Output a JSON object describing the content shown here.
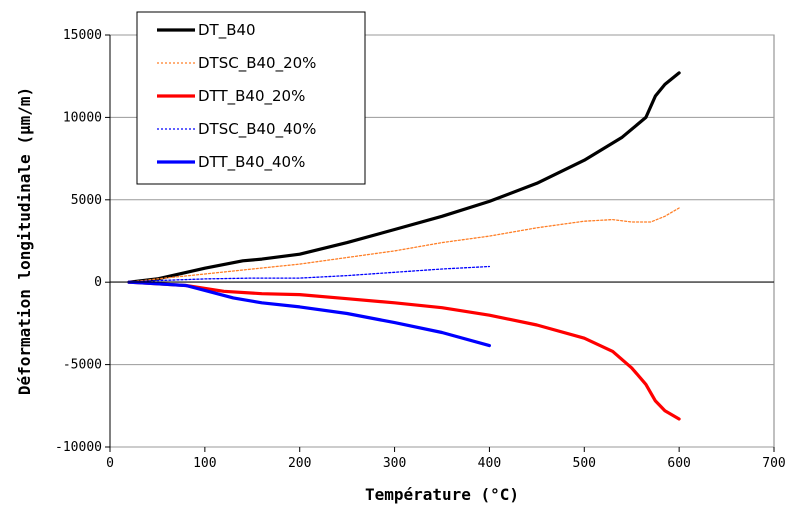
{
  "chart_data": {
    "type": "line",
    "xlabel": "Température (°C)",
    "ylabel": "Déformation longitudinale (µm/m)",
    "xlim": [
      0,
      700
    ],
    "ylim": [
      -10000,
      15000
    ],
    "xticks": [
      "0",
      "100",
      "200",
      "300",
      "400",
      "500",
      "600",
      "700"
    ],
    "yticks": [
      "15000",
      "10000",
      "5000",
      "0",
      "-5000",
      "-10000"
    ],
    "grid": "horizontal",
    "legend_position": "top-left",
    "series": [
      {
        "name": "DT_B40",
        "color": "#000000",
        "style": "solid",
        "x": [
          20,
          50,
          100,
          140,
          160,
          200,
          250,
          300,
          350,
          400,
          450,
          500,
          540,
          565,
          575,
          585,
          600
        ],
        "values": [
          0,
          200,
          850,
          1300,
          1400,
          1700,
          2400,
          3200,
          4000,
          4900,
          6000,
          7400,
          8800,
          10000,
          11300,
          12000,
          12700
        ]
      },
      {
        "name": "DTSC_B40_20%",
        "color": "#ff7f27",
        "style": "dotted",
        "x": [
          20,
          50,
          100,
          150,
          200,
          250,
          300,
          350,
          400,
          450,
          500,
          530,
          550,
          570,
          585,
          600
        ],
        "values": [
          0,
          200,
          500,
          800,
          1100,
          1500,
          1900,
          2400,
          2800,
          3300,
          3700,
          3800,
          3650,
          3650,
          4000,
          4500
        ]
      },
      {
        "name": "DTT_B40_20%",
        "color": "#ff0000",
        "style": "solid",
        "x": [
          20,
          50,
          80,
          120,
          160,
          200,
          250,
          300,
          350,
          400,
          450,
          500,
          530,
          550,
          565,
          575,
          585,
          600
        ],
        "values": [
          0,
          -100,
          -200,
          -550,
          -700,
          -750,
          -1000,
          -1250,
          -1550,
          -2000,
          -2600,
          -3400,
          -4200,
          -5200,
          -6200,
          -7200,
          -7800,
          -8300
        ]
      },
      {
        "name": "DTSC_B40_40%",
        "color": "#0000ff",
        "style": "dotted",
        "x": [
          20,
          50,
          100,
          150,
          200,
          250,
          300,
          350,
          400
        ],
        "values": [
          0,
          100,
          200,
          250,
          250,
          400,
          600,
          800,
          950
        ]
      },
      {
        "name": "DTT_B40_40%",
        "color": "#0000ff",
        "style": "solid",
        "x": [
          20,
          50,
          80,
          100,
          130,
          150,
          160,
          200,
          250,
          300,
          350,
          400
        ],
        "values": [
          0,
          -100,
          -200,
          -500,
          -950,
          -1150,
          -1250,
          -1500,
          -1900,
          -2450,
          -3050,
          -3850
        ]
      }
    ]
  }
}
